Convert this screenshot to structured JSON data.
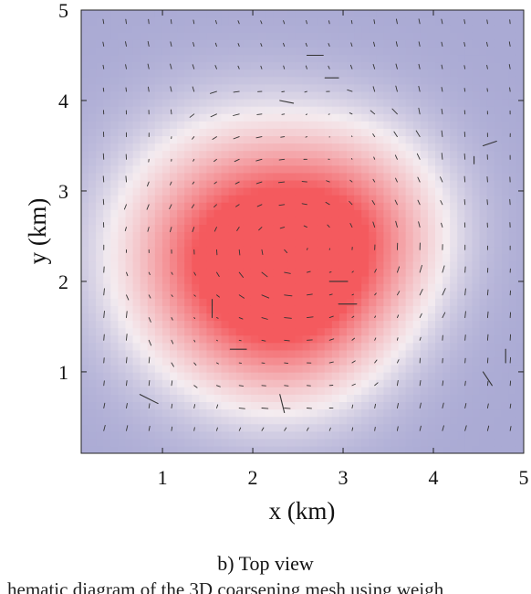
{
  "chart_data": {
    "type": "heatmap",
    "title": "",
    "xlabel": "x (km)",
    "ylabel": "y (km)",
    "xlim": [
      0.1,
      5.0
    ],
    "ylim": [
      0.1,
      5.0
    ],
    "x_ticks": [
      1,
      2,
      3,
      4,
      5
    ],
    "y_ticks": [
      1,
      2,
      3,
      4,
      5
    ],
    "grid": false,
    "colormap": {
      "low": "#aaaad4",
      "mid": "#f4ecf0",
      "high": "#f45a5e"
    },
    "field_peaks": [
      {
        "x": 1.9,
        "y": 2.3,
        "amplitude": 1.0,
        "spread_km": 0.85
      },
      {
        "x": 3.1,
        "y": 2.6,
        "amplitude": 0.55,
        "spread_km": 0.7
      },
      {
        "x": 2.5,
        "y": 1.7,
        "amplitude": 0.45,
        "spread_km": 0.7
      }
    ],
    "quiver": {
      "color": "#333333",
      "grid_spacing_km": 0.25,
      "notable_arrows": [
        {
          "x": 2.3,
          "y": 4.0,
          "u": 0.15,
          "v": -0.03
        },
        {
          "x": 2.6,
          "y": 4.5,
          "u": 0.18,
          "v": 0.0
        },
        {
          "x": 2.8,
          "y": 4.25,
          "u": 0.15,
          "v": 0.0
        },
        {
          "x": 4.55,
          "y": 3.5,
          "u": 0.15,
          "v": 0.05
        },
        {
          "x": 4.45,
          "y": 3.3,
          "u": 0.0,
          "v": 0.08
        },
        {
          "x": 2.85,
          "y": 2.0,
          "u": 0.2,
          "v": 0.0
        },
        {
          "x": 2.95,
          "y": 1.75,
          "u": 0.2,
          "v": 0.0
        },
        {
          "x": 1.55,
          "y": 1.6,
          "u": 0.0,
          "v": 0.2
        },
        {
          "x": 1.75,
          "y": 1.25,
          "u": 0.18,
          "v": 0.0
        },
        {
          "x": 0.75,
          "y": 0.75,
          "u": 0.2,
          "v": -0.1
        },
        {
          "x": 2.3,
          "y": 0.75,
          "u": 0.05,
          "v": -0.2
        },
        {
          "x": 4.55,
          "y": 1.0,
          "u": 0.1,
          "v": -0.15
        },
        {
          "x": 4.8,
          "y": 1.25,
          "u": 0.0,
          "v": -0.15
        }
      ]
    }
  },
  "caption": {
    "text": "b) Top view",
    "fragment": "hematic diagram of the 3D coarsening mesh using weigh"
  }
}
